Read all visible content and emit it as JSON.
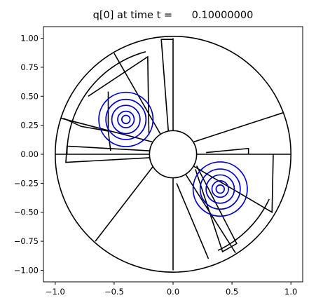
{
  "chart_data": {
    "type": "contour",
    "title": "q[0] at time t =      0.10000000",
    "xlabel": "",
    "ylabel": "",
    "xlim": [
      -1.1,
      1.1
    ],
    "ylim": [
      -1.1,
      1.1
    ],
    "x_ticks": [
      -1.0,
      -0.5,
      0.0,
      0.5,
      1.0
    ],
    "x_tick_labels": [
      "−1.0",
      "−0.5",
      "0.0",
      "0.5",
      "1.0"
    ],
    "y_ticks": [
      1.0,
      0.75,
      0.5,
      0.25,
      0.0,
      -0.25,
      -0.5,
      -0.75,
      -1.0
    ],
    "y_tick_labels": [
      "1.00",
      "0.75",
      "0.50",
      "0.25",
      "0.00",
      "−0.25",
      "−0.50",
      "−0.75",
      "−1.00"
    ],
    "grid": false,
    "domain": {
      "outer_radius": 1.0,
      "inner_radius": 0.2,
      "center": [
        0,
        0
      ]
    },
    "patch_edges": [
      [
        [
          -0.2,
          0.0
        ],
        [
          -1.0,
          0.0
        ]
      ],
      [
        [
          0.0,
          0.2
        ],
        [
          0.0,
          1.0
        ]
      ],
      [
        [
          0.2,
          0.0
        ],
        [
          1.0,
          0.0
        ]
      ],
      [
        [
          0.0,
          -0.2
        ],
        [
          0.0,
          -1.0
        ]
      ],
      [
        [
          -0.105,
          0.17
        ],
        [
          -0.5,
          0.87
        ]
      ],
      [
        [
          -0.17,
          0.105
        ],
        [
          -0.95,
          0.31
        ]
      ],
      [
        [
          -0.17,
          -0.105
        ],
        [
          -0.66,
          -0.75
        ]
      ],
      [
        [
          0.17,
          0.105
        ],
        [
          0.94,
          0.36
        ]
      ],
      [
        [
          0.105,
          -0.17
        ],
        [
          0.53,
          -0.85
        ]
      ]
    ],
    "refined_patches": [
      [
        [
          -0.224,
          0.18
        ],
        [
          -0.225,
          0.85
        ],
        [
          -0.72,
          0.5
        ],
        [
          -0.22,
          0.22
        ]
      ],
      [
        [
          -0.224,
          0.18
        ],
        [
          -0.22,
          0.22
        ],
        [
          -0.55,
          0.54
        ],
        [
          -0.55,
          0.23
        ]
      ],
      [
        [
          -0.12,
          0.0
        ],
        [
          -0.5,
          0.0
        ],
        [
          -0.9,
          0.07
        ],
        [
          -0.93,
          0.3
        ]
      ],
      [
        [
          -0.075,
          0.07
        ],
        [
          -0.58,
          0.04
        ],
        [
          -0.55,
          0.22
        ],
        [
          -0.3,
          0.23
        ]
      ],
      [
        [
          -0.195,
          -0.01
        ],
        [
          -0.72,
          0.02
        ],
        [
          -0.72,
          0.09
        ],
        [
          -0.81,
          0.07
        ]
      ],
      [
        [
          -0.66,
          0.03
        ],
        [
          -0.95,
          0.06
        ],
        [
          -0.87,
          0.4
        ],
        [
          -0.9,
          0.45
        ]
      ],
      [
        [
          0.39,
          0.04
        ],
        [
          0.3,
          0.0
        ],
        [
          0.3,
          -0.1
        ],
        [
          0.45,
          0.36
        ]
      ],
      [
        [
          0.15,
          -0.13
        ],
        [
          0.42,
          -0.35
        ],
        [
          0.35,
          -0.84
        ],
        [
          0.3,
          -0.65
        ]
      ],
      [
        [
          0.17,
          -0.13
        ],
        [
          0.43,
          -0.7
        ],
        [
          0.6,
          -0.56
        ],
        [
          0.57,
          -0.38
        ]
      ],
      [
        [
          0.39,
          -0.01
        ],
        [
          0.39,
          -0.88
        ],
        [
          0.43,
          -0.64
        ],
        [
          0.85,
          -0.25
        ]
      ]
    ],
    "patch_polylines": [
      [
        [
          -0.22,
          0.19
        ],
        [
          -0.22,
          0.85
        ],
        [
          -0.72,
          0.51
        ],
        [
          -0.22,
          0.19
        ]
      ],
      [
        [
          -0.2,
          0.2
        ],
        [
          -0.55,
          0.55
        ]
      ],
      [
        [
          -0.18,
          0.09
        ],
        [
          -0.93,
          0.31
        ],
        [
          -0.98,
          0.07
        ],
        [
          -0.88,
          -0.07
        ],
        [
          -0.2,
          -0.03
        ]
      ],
      [
        [
          -0.53,
          0.23
        ],
        [
          -0.53,
          0.0
        ]
      ],
      [
        [
          -0.55,
          0.54
        ],
        [
          -0.53,
          0.23
        ]
      ],
      [
        [
          0.28,
          0.01
        ],
        [
          0.64,
          0.05
        ],
        [
          0.63,
          0.0
        ]
      ],
      [
        [
          0.28,
          0.01
        ],
        [
          0.3,
          0.0
        ]
      ],
      [
        [
          0.19,
          -0.12
        ],
        [
          0.4,
          -0.8
        ],
        [
          0.58,
          -0.76
        ],
        [
          0.84,
          -0.43
        ],
        [
          0.89,
          0.0
        ]
      ],
      [
        [
          0.19,
          -0.12
        ],
        [
          0.41,
          -0.2
        ]
      ],
      [
        [
          0.03,
          -0.25
        ],
        [
          0.3,
          -0.9
        ]
      ],
      [
        [
          -0.0,
          0.98
        ],
        [
          -0.1,
          0.99
        ]
      ],
      [
        [
          -0.1,
          0.99
        ],
        [
          -0.08,
          0.2
        ]
      ]
    ],
    "contours": [
      {
        "center": [
          -0.4,
          0.3
        ],
        "radii": [
          0.23,
          0.17,
          0.12,
          0.07,
          0.035
        ],
        "color": "#0000cc"
      },
      {
        "center": [
          0.4,
          -0.3
        ],
        "radii": [
          0.23,
          0.17,
          0.12,
          0.07,
          0.035
        ],
        "color": "#0000cc"
      }
    ],
    "colors": {
      "edges": "#000000",
      "contours": "#0000cc",
      "background": "#ffffff"
    }
  }
}
